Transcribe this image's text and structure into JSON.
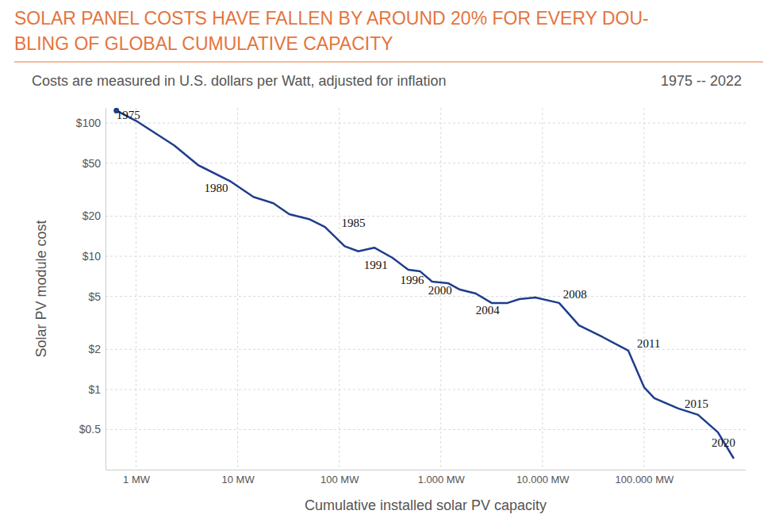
{
  "chart_data": {
    "type": "line",
    "title": "SOLAR PANEL COSTS HAVE FALLEN BY AROUND 20% FOR EVERY DOU-\nBLING OF GLOBAL CUMULATIVE CAPACITY",
    "subtitle": "Costs are measured in U.S. dollars per Watt, adjusted for inflation",
    "period": "1975 -- 2022",
    "x_label": "Cumulative installed solar PV capacity",
    "y_label": "Solar PV module cost",
    "log": true,
    "grid": true,
    "color": "#1f3d8c",
    "marker": "start",
    "x": [
      0.64,
      1,
      2.37,
      4.07,
      8.35,
      14.3,
      22.5,
      32.2,
      50.5,
      72.3,
      113,
      154,
      221,
      334,
      478,
      626,
      820,
      1175,
      1540,
      2207,
      3162,
      4530,
      5930,
      8510,
      14590,
      22900,
      39300,
      69800,
      100000,
      126000,
      217000,
      340000,
      533000,
      764000
    ],
    "values": [
      124,
      104,
      68,
      48.4,
      36.8,
      27.9,
      25,
      20.7,
      19,
      16.6,
      11.9,
      10.9,
      11.6,
      9.73,
      7.92,
      7.7,
      6.45,
      6.28,
      5.62,
      5.25,
      4.46,
      4.46,
      4.77,
      4.9,
      4.46,
      3.03,
      2.47,
      1.96,
      1.04,
      0.86,
      0.72,
      0.645,
      0.477,
      0.303
    ],
    "xlim": [
      0.5,
      1000000
    ],
    "ylim": [
      0.25,
      130
    ],
    "xticks": [
      {
        "value": 1,
        "label": "1 MW"
      },
      {
        "value": 10,
        "label": "10 MW"
      },
      {
        "value": 100,
        "label": "100 MW"
      },
      {
        "value": 1000,
        "label": "1.000 MW"
      },
      {
        "value": 10000,
        "label": "10.000 MW"
      },
      {
        "value": 100000,
        "label": "100.000 MW"
      }
    ],
    "yticks": [
      {
        "value": 0.5,
        "label": "$0.5"
      },
      {
        "value": 1,
        "label": "$1"
      },
      {
        "value": 2,
        "label": "$2"
      },
      {
        "value": 5,
        "label": "$5"
      },
      {
        "value": 10,
        "label": "$10"
      },
      {
        "value": 20,
        "label": "$20"
      },
      {
        "value": 50,
        "label": "$50"
      },
      {
        "value": 100,
        "label": "$100"
      }
    ],
    "annotations": [
      {
        "text": "1975",
        "x": 0.84,
        "y": 112
      },
      {
        "text": "1980",
        "x": 6.15,
        "y": 32
      },
      {
        "text": "1985",
        "x": 138,
        "y": 17.3
      },
      {
        "text": "1991",
        "x": 229,
        "y": 8.4
      },
      {
        "text": "1996",
        "x": 522,
        "y": 6.5
      },
      {
        "text": "2000",
        "x": 981,
        "y": 5.4
      },
      {
        "text": "2004",
        "x": 2890,
        "y": 3.83
      },
      {
        "text": "2008",
        "x": 20900,
        "y": 5.1
      },
      {
        "text": "2011",
        "x": 111000,
        "y": 2.18
      },
      {
        "text": "2015",
        "x": 328000,
        "y": 0.76
      },
      {
        "text": "2020",
        "x": 604000,
        "y": 0.39
      }
    ]
  }
}
